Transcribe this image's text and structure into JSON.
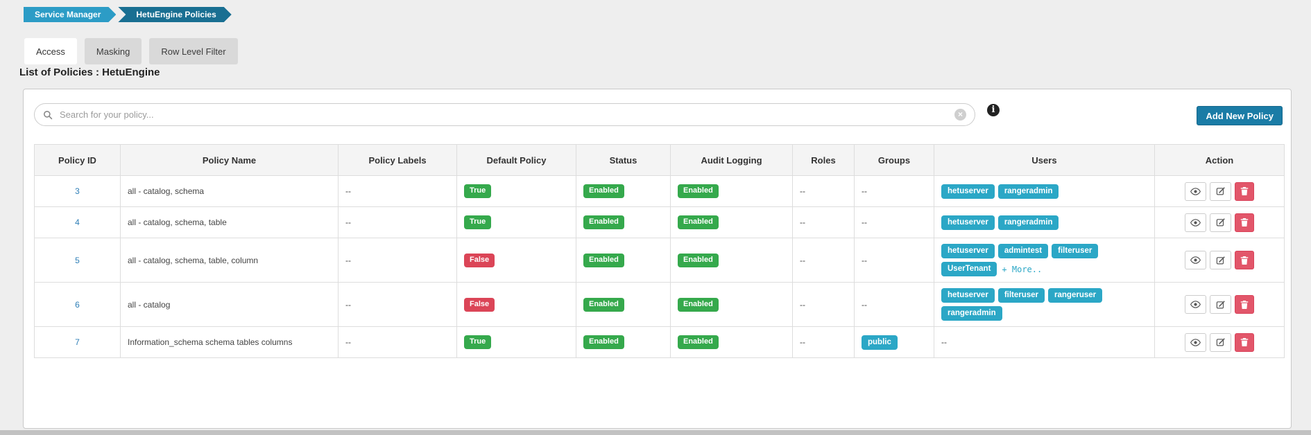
{
  "breadcrumb": {
    "items": [
      "Service Manager",
      "HetuEngine Policies"
    ]
  },
  "tabs": [
    {
      "label": "Access",
      "active": true
    },
    {
      "label": "Masking",
      "active": false
    },
    {
      "label": "Row Level Filter",
      "active": false
    }
  ],
  "page_title": "List of Policies : HetuEngine",
  "toolbar": {
    "search_placeholder": "Search for your policy...",
    "search_value": "",
    "add_button_label": "Add New Policy"
  },
  "table": {
    "columns": [
      "Policy ID",
      "Policy Name",
      "Policy Labels",
      "Default Policy",
      "Status",
      "Audit Logging",
      "Roles",
      "Groups",
      "Users",
      "Action"
    ],
    "empty_placeholder": "--",
    "more_label": "+ More..",
    "actions": [
      "view",
      "edit",
      "delete"
    ],
    "rows": [
      {
        "policy_id": "3",
        "policy_name": "all - catalog, schema",
        "policy_labels": "--",
        "default_policy": {
          "label": "True",
          "variant": "success"
        },
        "status": {
          "label": "Enabled",
          "variant": "success"
        },
        "audit_logging": {
          "label": "Enabled",
          "variant": "success"
        },
        "roles": "--",
        "groups": [],
        "users": [
          "hetuserver",
          "rangeradmin"
        ],
        "users_more": false
      },
      {
        "policy_id": "4",
        "policy_name": "all - catalog, schema, table",
        "policy_labels": "--",
        "default_policy": {
          "label": "True",
          "variant": "success"
        },
        "status": {
          "label": "Enabled",
          "variant": "success"
        },
        "audit_logging": {
          "label": "Enabled",
          "variant": "success"
        },
        "roles": "--",
        "groups": [],
        "users": [
          "hetuserver",
          "rangeradmin"
        ],
        "users_more": false
      },
      {
        "policy_id": "5",
        "policy_name": "all - catalog, schema, table, column",
        "policy_labels": "--",
        "default_policy": {
          "label": "False",
          "variant": "danger"
        },
        "status": {
          "label": "Enabled",
          "variant": "success"
        },
        "audit_logging": {
          "label": "Enabled",
          "variant": "success"
        },
        "roles": "--",
        "groups": [],
        "users": [
          "hetuserver",
          "admintest",
          "filteruser",
          "UserTenant"
        ],
        "users_more": true
      },
      {
        "policy_id": "6",
        "policy_name": "all - catalog",
        "policy_labels": "--",
        "default_policy": {
          "label": "False",
          "variant": "danger"
        },
        "status": {
          "label": "Enabled",
          "variant": "success"
        },
        "audit_logging": {
          "label": "Enabled",
          "variant": "success"
        },
        "roles": "--",
        "groups": [],
        "users": [
          "hetuserver",
          "filteruser",
          "rangeruser",
          "rangeradmin"
        ],
        "users_more": false
      },
      {
        "policy_id": "7",
        "policy_name": "Information_schema schema tables columns",
        "policy_labels": "--",
        "default_policy": {
          "label": "True",
          "variant": "success"
        },
        "status": {
          "label": "Enabled",
          "variant": "success"
        },
        "audit_logging": {
          "label": "Enabled",
          "variant": "success"
        },
        "roles": "--",
        "groups": [
          "public"
        ],
        "users": [],
        "users_more": false
      }
    ]
  },
  "colors": {
    "page_background": "#eeeeee",
    "breadcrumb_first": "#2c9cc6",
    "breadcrumb_last": "#196f92",
    "badge_success": "#35a94c",
    "badge_danger": "#db4557",
    "badge_teal": "#2ba7c6",
    "add_button": "#1a7ca6",
    "delete_button": "#e2566a",
    "link_blue": "#2f7fb7"
  }
}
